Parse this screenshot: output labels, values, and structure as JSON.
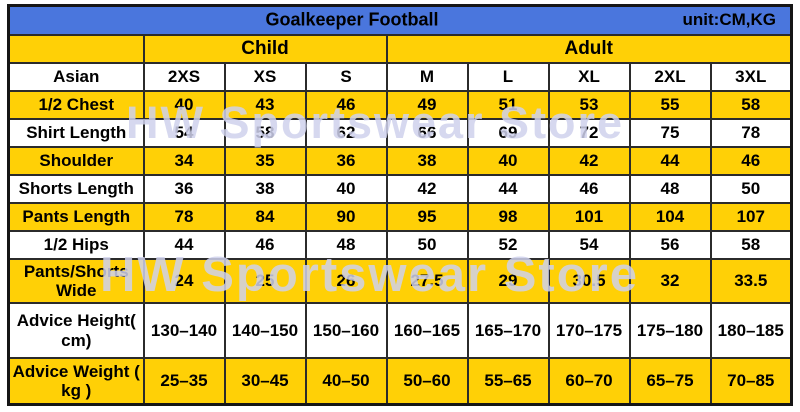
{
  "header": {
    "title": "Goalkeeper Football",
    "unit": "unit:CM,KG"
  },
  "groups": {
    "child": "Child",
    "adult": "Adult"
  },
  "sizes": {
    "label": "Asian",
    "cols": [
      "2XS",
      "XS",
      "S",
      "M",
      "L",
      "XL",
      "2XL",
      "3XL"
    ]
  },
  "rows": [
    {
      "label": "1/2 Chest",
      "values": [
        "40",
        "43",
        "46",
        "49",
        "51",
        "53",
        "55",
        "58"
      ]
    },
    {
      "label": "Shirt Length",
      "values": [
        "54",
        "58",
        "62",
        "66",
        "69",
        "72",
        "75",
        "78"
      ]
    },
    {
      "label": "Shoulder",
      "values": [
        "34",
        "35",
        "36",
        "38",
        "40",
        "42",
        "44",
        "46"
      ]
    },
    {
      "label": "Shorts Length",
      "values": [
        "36",
        "38",
        "40",
        "42",
        "44",
        "46",
        "48",
        "50"
      ]
    },
    {
      "label": "Pants Length",
      "values": [
        "78",
        "84",
        "90",
        "95",
        "98",
        "101",
        "104",
        "107"
      ]
    },
    {
      "label": "1/2 Hips",
      "values": [
        "44",
        "46",
        "48",
        "50",
        "52",
        "54",
        "56",
        "58"
      ]
    },
    {
      "label": "Pants/Shorts Wide",
      "values": [
        "24",
        "25",
        "26",
        "27.5",
        "29",
        "30.5",
        "32",
        "33.5"
      ]
    },
    {
      "label": "Advice Height( cm)",
      "values": [
        "130–140",
        "140–150",
        "150–160",
        "160–165",
        "165–170",
        "170–175",
        "175–180",
        "180–185"
      ]
    },
    {
      "label": "Advice Weight ( kg )",
      "values": [
        "25–35",
        "30–45",
        "40–50",
        "50–60",
        "55–65",
        "60–70",
        "65–75",
        "70–85"
      ]
    }
  ],
  "watermark": {
    "text": "HW Sportswear Store"
  },
  "colors": {
    "header_blue": "#4a76dd",
    "row_yellow": "#ffd006",
    "row_white": "#ffffff",
    "border": "#2b2b2b",
    "text": "#000000",
    "watermark": "#cfd1ec"
  },
  "chart_data": {
    "type": "table",
    "title": "Goalkeeper Football",
    "unit": "CM,KG",
    "column_groups": [
      {
        "name": "Child",
        "columns": [
          "2XS",
          "XS",
          "S"
        ]
      },
      {
        "name": "Adult",
        "columns": [
          "M",
          "L",
          "XL",
          "2XL",
          "3XL"
        ]
      }
    ],
    "columns": [
      "Asian",
      "2XS",
      "XS",
      "S",
      "M",
      "L",
      "XL",
      "2XL",
      "3XL"
    ],
    "rows": [
      {
        "label": "1/2 Chest",
        "values": [
          40,
          43,
          46,
          49,
          51,
          53,
          55,
          58
        ]
      },
      {
        "label": "Shirt Length",
        "values": [
          54,
          58,
          62,
          66,
          69,
          72,
          75,
          78
        ]
      },
      {
        "label": "Shoulder",
        "values": [
          34,
          35,
          36,
          38,
          40,
          42,
          44,
          46
        ]
      },
      {
        "label": "Shorts Length",
        "values": [
          36,
          38,
          40,
          42,
          44,
          46,
          48,
          50
        ]
      },
      {
        "label": "Pants Length",
        "values": [
          78,
          84,
          90,
          95,
          98,
          101,
          104,
          107
        ]
      },
      {
        "label": "1/2 Hips",
        "values": [
          44,
          46,
          48,
          50,
          52,
          54,
          56,
          58
        ]
      },
      {
        "label": "Pants/Shorts Wide",
        "values": [
          24,
          25,
          26,
          27.5,
          29,
          30.5,
          32,
          33.5
        ]
      },
      {
        "label": "Advice Height (cm)",
        "values": [
          "130-140",
          "140-150",
          "150-160",
          "160-165",
          "165-170",
          "170-175",
          "175-180",
          "180-185"
        ]
      },
      {
        "label": "Advice Weight (kg)",
        "values": [
          "25-35",
          "30-45",
          "40-50",
          "50-60",
          "55-65",
          "60-70",
          "65-75",
          "70-85"
        ]
      }
    ]
  }
}
